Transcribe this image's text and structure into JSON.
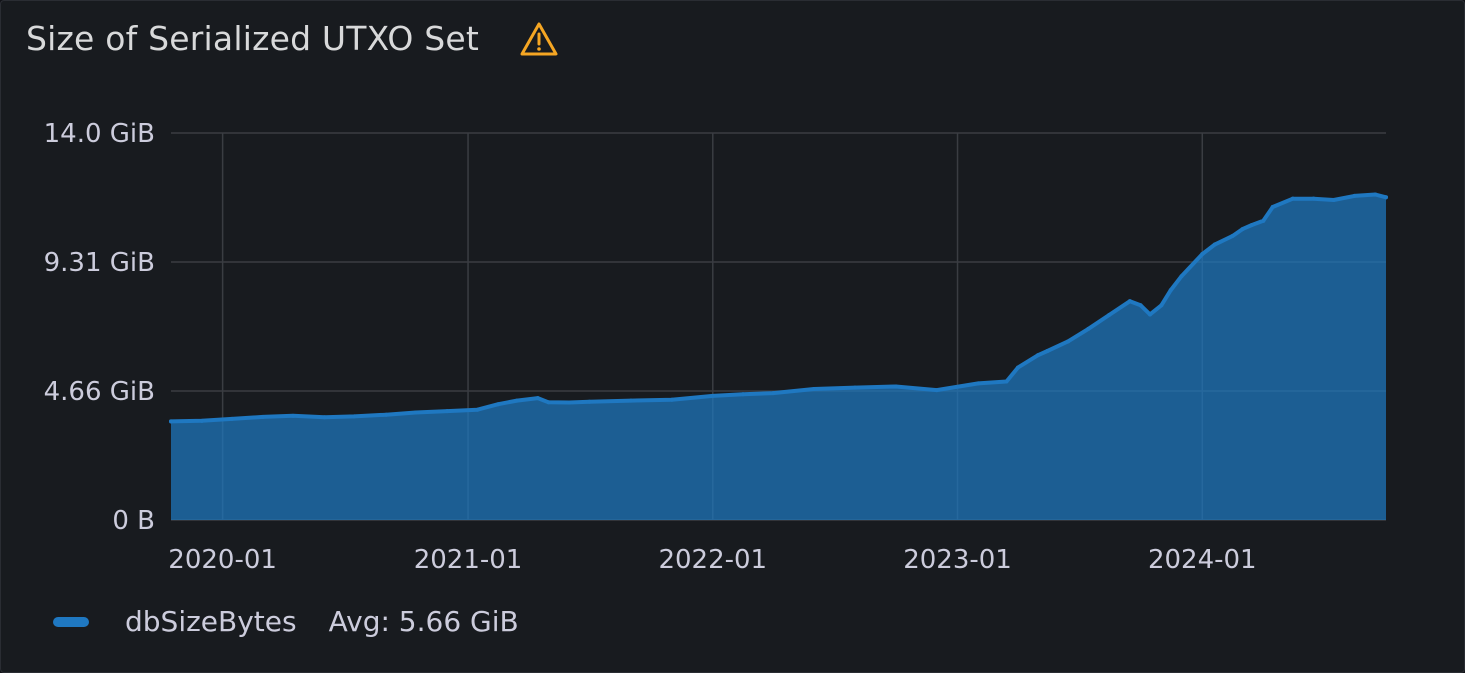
{
  "panel": {
    "title": "Size of Serialized UTXO Set",
    "warning_icon": "warning-triangle-icon"
  },
  "legend": {
    "series_name": "dbSizeBytes",
    "avg_label": "Avg: 5.66 GiB"
  },
  "colors": {
    "background": "#181b1f",
    "series": "#1f78c1",
    "warning": "#f5a623",
    "grid": "#3a3d42",
    "text": "#ccccdc"
  },
  "chart_data": {
    "type": "area",
    "title": "Size of Serialized UTXO Set",
    "xlabel": "",
    "ylabel": "",
    "x_axis": "time",
    "x_range": [
      "2019-10-16",
      "2024-10-01"
    ],
    "x_ticks": [
      "2020-01",
      "2021-01",
      "2022-01",
      "2023-01",
      "2024-01"
    ],
    "y_ticks": [
      "0 B",
      "4.66 GiB",
      "9.31 GiB",
      "14.0 GiB"
    ],
    "ylim": [
      0,
      13.97
    ],
    "y_unit": "GiB",
    "grid": true,
    "legend_position": "bottom-left",
    "series": [
      {
        "name": "dbSizeBytes",
        "x": [
          "2019-10-16",
          "2019-12-01",
          "2020-01-15",
          "2020-03-01",
          "2020-04-15",
          "2020-06-01",
          "2020-07-15",
          "2020-09-01",
          "2020-10-15",
          "2020-12-01",
          "2021-01-15",
          "2021-02-15",
          "2021-03-15",
          "2021-04-15",
          "2021-05-01",
          "2021-06-01",
          "2021-07-01",
          "2021-09-01",
          "2021-11-01",
          "2022-01-01",
          "2022-02-15",
          "2022-04-01",
          "2022-06-01",
          "2022-08-01",
          "2022-10-01",
          "2022-12-01",
          "2023-02-01",
          "2023-03-15",
          "2023-04-01",
          "2023-05-01",
          "2023-05-15",
          "2023-06-15",
          "2023-07-15",
          "2023-08-15",
          "2023-09-15",
          "2023-10-01",
          "2023-10-15",
          "2023-11-01",
          "2023-11-15",
          "2023-12-01",
          "2024-01-01",
          "2024-01-20",
          "2024-02-15",
          "2024-03-01",
          "2024-03-15",
          "2024-04-01",
          "2024-04-15",
          "2024-05-15",
          "2024-06-15",
          "2024-07-15",
          "2024-08-15",
          "2024-09-15",
          "2024-10-01"
        ],
        "values": [
          3.56,
          3.58,
          3.65,
          3.72,
          3.76,
          3.71,
          3.74,
          3.8,
          3.88,
          3.93,
          3.98,
          4.18,
          4.31,
          4.4,
          4.25,
          4.24,
          4.27,
          4.31,
          4.34,
          4.48,
          4.54,
          4.58,
          4.73,
          4.78,
          4.82,
          4.69,
          4.93,
          5.0,
          5.5,
          5.95,
          6.1,
          6.45,
          6.9,
          7.4,
          7.9,
          7.75,
          7.42,
          7.75,
          8.3,
          8.8,
          9.6,
          9.95,
          10.25,
          10.5,
          10.65,
          10.8,
          11.3,
          11.6,
          11.6,
          11.55,
          11.7,
          11.75,
          11.65
        ]
      }
    ]
  }
}
